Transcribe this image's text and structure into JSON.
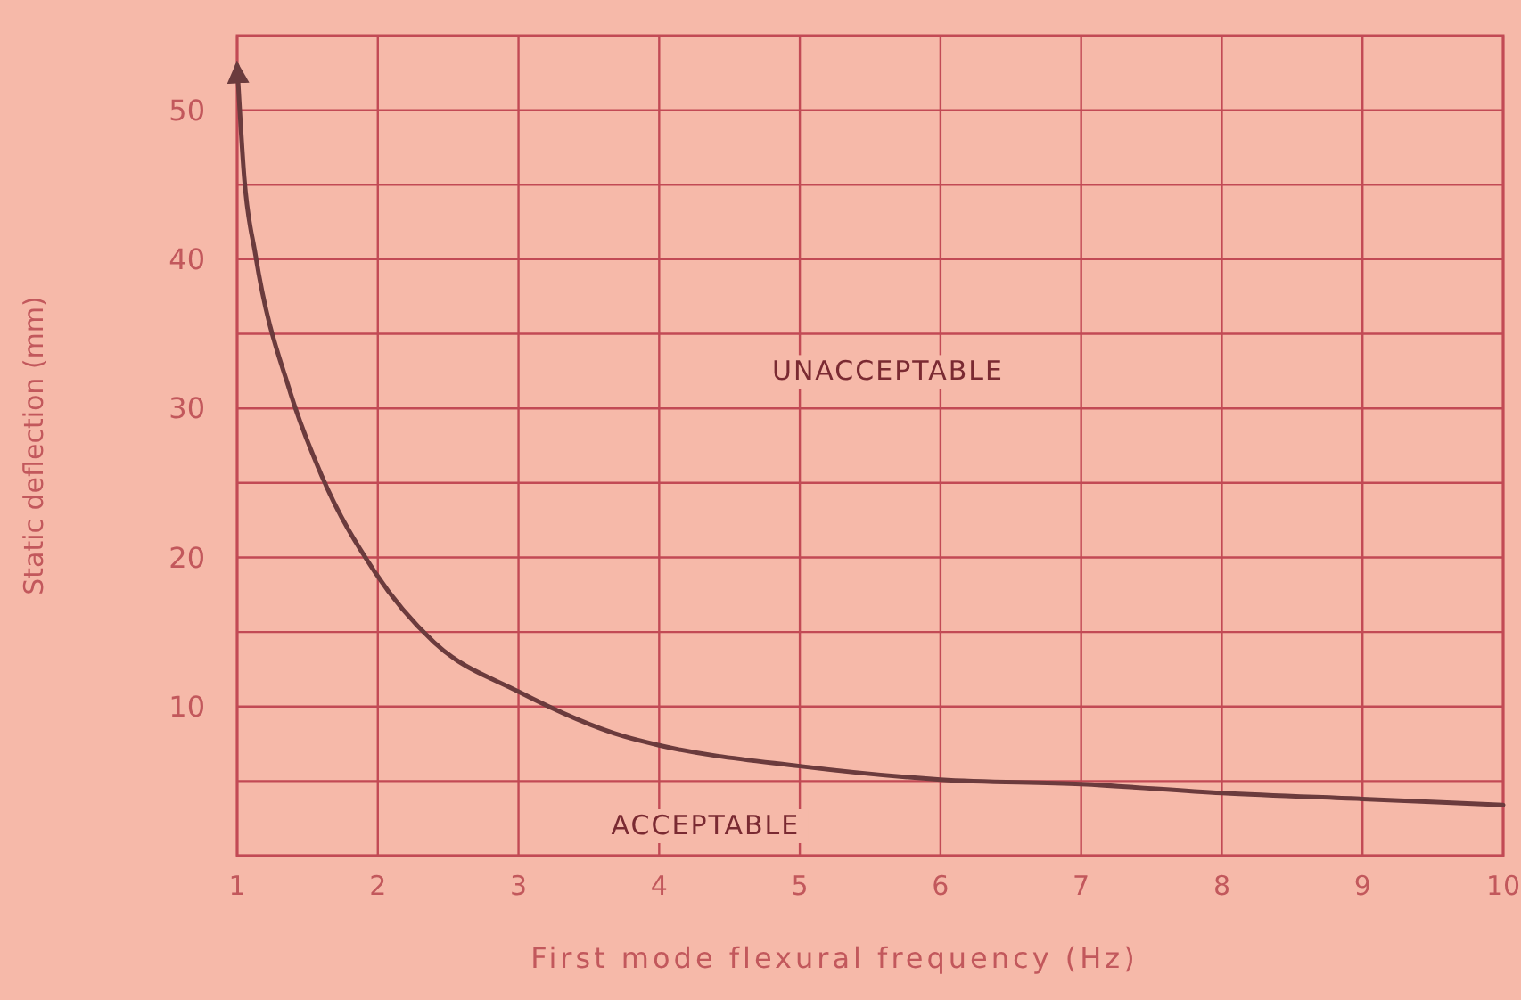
{
  "chart_data": {
    "type": "line",
    "xlabel": "First mode flexural frequency (Hz)",
    "ylabel": "Static deflection (mm)",
    "annotations": [
      "UNACCEPTABLE",
      "ACCEPTABLE"
    ],
    "xlim": [
      1,
      10
    ],
    "xticks": [
      1,
      2,
      3,
      4,
      5,
      6,
      7,
      8,
      9,
      10
    ],
    "ylim": [
      0,
      55
    ],
    "yticks": [
      {
        "value": 0,
        "label": null
      },
      {
        "value": 5,
        "label": null
      },
      10,
      {
        "value": 15,
        "label": null
      },
      20,
      {
        "value": 25,
        "label": null
      },
      30,
      {
        "value": 35,
        "label": null
      },
      40,
      {
        "value": 45,
        "label": null
      },
      50
    ],
    "grid": true,
    "line_style": "solid",
    "series": [
      {
        "color": "#6b3b3d",
        "x": [
          1,
          1.05,
          1.13,
          1.38,
          1.6,
          1.98,
          2.4,
          3,
          3.75,
          4,
          5,
          6,
          7,
          8,
          9,
          10
        ],
        "values": [
          53,
          45.5,
          40.3,
          31,
          25.5,
          19,
          14.3,
          11,
          8,
          7.4,
          6,
          5.1,
          4.8,
          4.2,
          3.8,
          3.4
        ]
      }
    ]
  }
}
